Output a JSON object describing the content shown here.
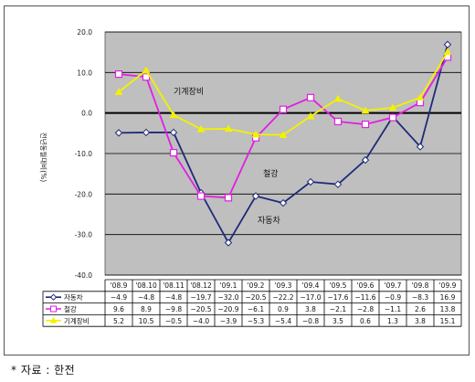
{
  "chart_data": {
    "type": "line",
    "categories": [
      "'08.9",
      "'08.10",
      "'08.11",
      "'08.12",
      "'09.1",
      "'09.2",
      "'09.3",
      "'09.4",
      "'09.5",
      "'09.6",
      "'09.7",
      "'09.8",
      "'09.9"
    ],
    "series": [
      {
        "name": "자동차",
        "color": "#1f2a78",
        "marker": "diamond",
        "values": [
          -4.9,
          -4.8,
          -4.8,
          -19.7,
          -32.0,
          -20.5,
          -22.2,
          -17.0,
          -17.6,
          -11.6,
          -0.9,
          -8.3,
          16.9
        ],
        "labels": [
          "-4.9",
          "-4.8",
          "-4.8",
          "-19.7",
          "-32.0",
          "-20.5",
          "-22.2",
          "-17.0",
          "-17.6",
          "-11.6",
          "-0.9",
          "-8.3",
          "16.9"
        ]
      },
      {
        "name": "철강",
        "color": "#e020e0",
        "marker": "square",
        "values": [
          9.6,
          8.9,
          -9.8,
          -20.5,
          -20.9,
          -6.1,
          0.9,
          3.8,
          -2.1,
          -2.8,
          -1.1,
          2.6,
          13.8
        ],
        "labels": [
          "9.6",
          "8.9",
          "-9.8",
          "-20.5",
          "-20.9",
          "-6.1",
          "0.9",
          "3.8",
          "-2.1",
          "-2.8",
          "-1.1",
          "2.6",
          "13.8"
        ]
      },
      {
        "name": "기계장비",
        "color": "#f2f200",
        "marker": "triangle",
        "values": [
          5.2,
          10.5,
          -0.5,
          -4.0,
          -3.9,
          -5.3,
          -5.4,
          -0.8,
          3.5,
          0.6,
          1.3,
          3.8,
          15.1
        ],
        "labels": [
          "5.2",
          "10.5",
          "-0.5",
          "-4.0",
          "-3.9",
          "-5.3",
          "-5.4",
          "-0.8",
          "3.5",
          "0.6",
          "1.3",
          "3.8",
          "15.1"
        ]
      }
    ],
    "ylim": [
      -40,
      20
    ],
    "yticks": [
      "20.0",
      "10.0",
      "0.0",
      "-10.0",
      "-20.0",
      "-30.0",
      "-40.0"
    ],
    "ylabel": "전년동월대비(%)",
    "grid": true,
    "annotations": [
      {
        "text": "기계장비",
        "series": "기계장비"
      },
      {
        "text": "철강",
        "series": "철강"
      },
      {
        "text": "자동차",
        "series": "자동차"
      }
    ]
  },
  "source": "* 자료 : 한전"
}
